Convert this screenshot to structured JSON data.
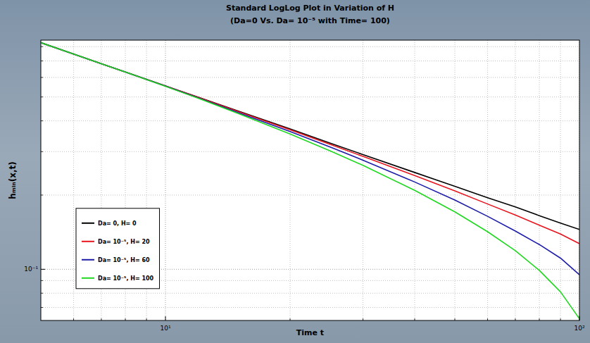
{
  "chart_data": {
    "type": "line",
    "title": "Standard LogLog Plot in Variation of H",
    "subtitle": "(Da=0 Vs. Da= 10⁻⁵ with Time= 100)",
    "x_label": "Time t",
    "y_label": "hₘᵢₙ(x,t)",
    "x": [
      5,
      6,
      7,
      8,
      10,
      12,
      15,
      20,
      25,
      30,
      40,
      50,
      60,
      70,
      80,
      90,
      100
    ],
    "series": [
      {
        "name": "Da= 0, H= 0",
        "color": "#000000",
        "values": [
          0.83,
          0.746,
          0.682,
          0.631,
          0.554,
          0.499,
          0.438,
          0.371,
          0.325,
          0.292,
          0.247,
          0.217,
          0.195,
          0.179,
          0.165,
          0.154,
          0.145
        ]
      },
      {
        "name": "Da= 10⁻⁵, H= 20",
        "color": "#e8141e",
        "values": [
          0.83,
          0.746,
          0.682,
          0.631,
          0.554,
          0.498,
          0.436,
          0.368,
          0.321,
          0.287,
          0.24,
          0.208,
          0.184,
          0.166,
          0.151,
          0.139,
          0.127
        ]
      },
      {
        "name": "Da= 10⁻⁵, H= 60",
        "color": "#1c1ca8",
        "values": [
          0.83,
          0.746,
          0.682,
          0.631,
          0.553,
          0.496,
          0.432,
          0.362,
          0.313,
          0.277,
          0.226,
          0.191,
          0.164,
          0.143,
          0.126,
          0.111,
          0.095
        ]
      },
      {
        "name": "Da= 10⁻⁵, H= 100",
        "color": "#20d820",
        "values": [
          0.83,
          0.746,
          0.682,
          0.631,
          0.552,
          0.494,
          0.428,
          0.354,
          0.302,
          0.264,
          0.209,
          0.171,
          0.142,
          0.119,
          0.099,
          0.081,
          0.063
        ]
      }
    ],
    "xlim": [
      5,
      100
    ],
    "ylim": [
      0.062,
      0.85
    ],
    "xticks": [
      {
        "value": 10,
        "label": "10¹"
      },
      {
        "value": 100,
        "label": "10²"
      }
    ],
    "yticks": [
      {
        "value": 0.1,
        "label": "10⁻¹"
      }
    ],
    "log": true,
    "grid": true,
    "legend": "left"
  }
}
